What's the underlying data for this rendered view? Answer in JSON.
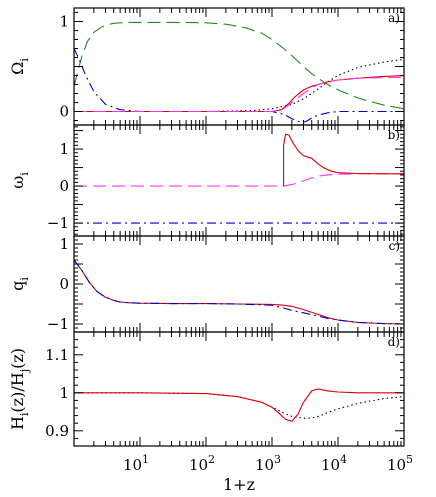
{
  "figure": {
    "xlabel": "1+z",
    "x_tick_labels": [
      {
        "x": 10,
        "base": "10",
        "exp": "1"
      },
      {
        "x": 100,
        "base": "10",
        "exp": "2"
      },
      {
        "x": 1000,
        "base": "10",
        "exp": "3"
      },
      {
        "x": 10000,
        "base": "10",
        "exp": "4"
      },
      {
        "x": 100000,
        "base": "10",
        "exp": "5"
      }
    ]
  },
  "chart_data": [
    {
      "type": "line",
      "panel_label": "a)",
      "ylabel": {
        "main": "Ω",
        "sub": "i"
      },
      "xscale": "log",
      "xlim": [
        1,
        100000
      ],
      "ylim": [
        -0.15,
        1.15
      ],
      "yticks": [
        {
          "v": 0,
          "label": "0"
        },
        {
          "v": 1,
          "label": "1"
        }
      ],
      "series": [
        {
          "color": "#1f8a1f",
          "style": "dashed",
          "x": [
            1,
            1.3,
            1.6,
            2,
            2.5,
            3,
            4,
            5,
            7,
            10,
            20,
            50,
            100,
            200,
            400,
            700,
            1000,
            1500,
            2000,
            3000,
            4000,
            5000,
            7000,
            10000,
            20000,
            50000,
            100000
          ],
          "y": [
            0.28,
            0.6,
            0.78,
            0.88,
            0.93,
            0.96,
            0.98,
            0.985,
            0.99,
            0.99,
            0.99,
            0.99,
            0.985,
            0.97,
            0.93,
            0.87,
            0.8,
            0.7,
            0.62,
            0.5,
            0.42,
            0.37,
            0.3,
            0.24,
            0.15,
            0.07,
            0.03
          ]
        },
        {
          "color": "#0000cc",
          "style": "dashdot",
          "x": [
            1,
            1.2,
            1.5,
            2,
            3,
            5,
            10,
            100,
            1000,
            1500,
            2000,
            2500,
            3000,
            3500,
            4000,
            5000,
            7000,
            10000,
            20000,
            100000
          ],
          "y": [
            0.7,
            0.58,
            0.4,
            0.22,
            0.08,
            0.02,
            0.0,
            0.0,
            0.0,
            -0.03,
            -0.08,
            -0.11,
            -0.12,
            -0.1,
            -0.07,
            -0.04,
            -0.015,
            0.0,
            0.0,
            0.0
          ]
        },
        {
          "color": "#000000",
          "style": "dotted",
          "x": [
            1,
            10,
            100,
            500,
            1000,
            2000,
            3000,
            5000,
            7000,
            10000,
            20000,
            50000,
            100000
          ],
          "y": [
            0.0,
            0.0,
            0.0,
            0.01,
            0.03,
            0.08,
            0.14,
            0.25,
            0.33,
            0.4,
            0.49,
            0.55,
            0.58
          ]
        },
        {
          "color": "#dd0000",
          "style": "solid",
          "x": [
            1,
            10,
            100,
            1000,
            1400,
            1800,
            2200,
            3000,
            4000,
            5000,
            7000,
            10000,
            20000,
            50000,
            100000
          ],
          "y": [
            0.0,
            0.0,
            0.0,
            0.0,
            0.02,
            0.09,
            0.16,
            0.24,
            0.28,
            0.3,
            0.33,
            0.35,
            0.37,
            0.39,
            0.4
          ]
        },
        {
          "color": "#ff33ff",
          "style": "dashed",
          "x": [
            1,
            10,
            100,
            1000,
            1500,
            2000,
            3000,
            4000,
            5000,
            7000,
            10000,
            20000,
            100000
          ],
          "y": [
            0.0,
            0.0,
            0.0,
            0.0,
            0.03,
            0.1,
            0.2,
            0.26,
            0.3,
            0.33,
            0.35,
            0.37,
            0.38
          ]
        }
      ]
    },
    {
      "type": "line",
      "panel_label": "b)",
      "ylabel": {
        "main": "ω",
        "sub": "i"
      },
      "xscale": "log",
      "xlim": [
        1,
        100000
      ],
      "ylim": [
        -1.35,
        1.65
      ],
      "yticks": [
        {
          "v": -1,
          "label": "−1"
        },
        {
          "v": 0,
          "label": "0"
        },
        {
          "v": 1,
          "label": "1"
        }
      ],
      "series": [
        {
          "color": "#0000cc",
          "style": "dashdot",
          "x": [
            1,
            100000
          ],
          "y": [
            -1.0,
            -1.0
          ]
        },
        {
          "color": "#ff33ff",
          "style": "dashed",
          "x": [
            1,
            10,
            100,
            1000,
            1500,
            2000,
            3000,
            4000,
            5000,
            7000,
            10000,
            20000,
            100000
          ],
          "y": [
            0.0,
            0.0,
            0.0,
            0.0,
            0.0,
            0.04,
            0.14,
            0.22,
            0.27,
            0.3,
            0.32,
            0.33,
            0.33
          ]
        },
        {
          "color": "#dd0000",
          "style": "solid",
          "x": [
            1500,
            1500,
            1600,
            1800,
            2100,
            2500,
            3000,
            3500,
            4000,
            5000,
            6000,
            8000,
            10000,
            20000,
            50000,
            100000
          ],
          "y": [
            0.0,
            1.1,
            1.4,
            1.38,
            1.15,
            0.95,
            0.82,
            0.78,
            0.75,
            0.6,
            0.5,
            0.4,
            0.36,
            0.34,
            0.33,
            0.33
          ]
        }
      ]
    },
    {
      "type": "line",
      "panel_label": "c)",
      "ylabel": {
        "main": "q",
        "sub": "i"
      },
      "xscale": "log",
      "xlim": [
        1,
        100000
      ],
      "ylim": [
        -1.2,
        1.2
      ],
      "yticks": [
        {
          "v": -1,
          "label": "−1"
        },
        {
          "v": 0,
          "label": "0"
        },
        {
          "v": 1,
          "label": "1"
        }
      ],
      "series": [
        {
          "color": "#dd0000",
          "style": "solid",
          "x": [
            1,
            1.3,
            1.7,
            2.2,
            3,
            4,
            5,
            7,
            10,
            30,
            100,
            300,
            1000,
            1500,
            2000,
            3000,
            5000,
            7000,
            10000,
            20000,
            50000,
            100000
          ],
          "y": [
            0.6,
            0.35,
            0.05,
            -0.18,
            -0.33,
            -0.41,
            -0.45,
            -0.47,
            -0.48,
            -0.49,
            -0.49,
            -0.5,
            -0.51,
            -0.53,
            -0.56,
            -0.64,
            -0.76,
            -0.84,
            -0.9,
            -0.96,
            -0.99,
            -1.0
          ]
        },
        {
          "color": "#0000cc",
          "style": "dashdot",
          "x": [
            1,
            1.3,
            1.7,
            2.2,
            3,
            4,
            5,
            7,
            10,
            30,
            100,
            300,
            1000,
            1500,
            2000,
            3000,
            5000,
            7000,
            10000,
            20000,
            50000,
            100000
          ],
          "y": [
            0.6,
            0.35,
            0.05,
            -0.18,
            -0.33,
            -0.41,
            -0.45,
            -0.47,
            -0.48,
            -0.49,
            -0.49,
            -0.5,
            -0.53,
            -0.6,
            -0.66,
            -0.72,
            -0.8,
            -0.86,
            -0.9,
            -0.96,
            -0.99,
            -1.0
          ]
        }
      ]
    },
    {
      "type": "line",
      "panel_label": "d)",
      "ylabel": {
        "main": "H",
        "sub_main": "i",
        "mid": "(z)/H",
        "sub_mid": "j",
        "tail": "(z)"
      },
      "xscale": "log",
      "xlim": [
        1,
        100000
      ],
      "ylim": [
        0.86,
        1.16
      ],
      "yticks": [
        {
          "v": 0.9,
          "label": "0.9"
        },
        {
          "v": 1,
          "label": "1"
        },
        {
          "v": 1.1,
          "label": "1.1"
        }
      ],
      "series": [
        {
          "color": "#000000",
          "style": "dotted",
          "x": [
            1,
            10,
            100,
            300,
            700,
            1000,
            1500,
            2000,
            3000,
            4000,
            5000,
            7000,
            10000,
            20000,
            50000,
            100000
          ],
          "y": [
            1.0,
            1.0,
            0.998,
            0.99,
            0.975,
            0.962,
            0.947,
            0.938,
            0.933,
            0.934,
            0.938,
            0.948,
            0.958,
            0.972,
            0.985,
            0.99
          ]
        },
        {
          "color": "#dd0000",
          "style": "solid",
          "x": [
            1,
            10,
            100,
            300,
            700,
            1000,
            1300,
            1600,
            2000,
            2500,
            3000,
            4000,
            5000,
            7000,
            10000,
            20000,
            100000
          ],
          "y": [
            1.0,
            1.0,
            0.998,
            0.99,
            0.975,
            0.962,
            0.945,
            0.93,
            0.925,
            0.945,
            0.975,
            1.005,
            1.01,
            1.005,
            1.002,
            1.0,
            1.0
          ]
        }
      ]
    }
  ]
}
